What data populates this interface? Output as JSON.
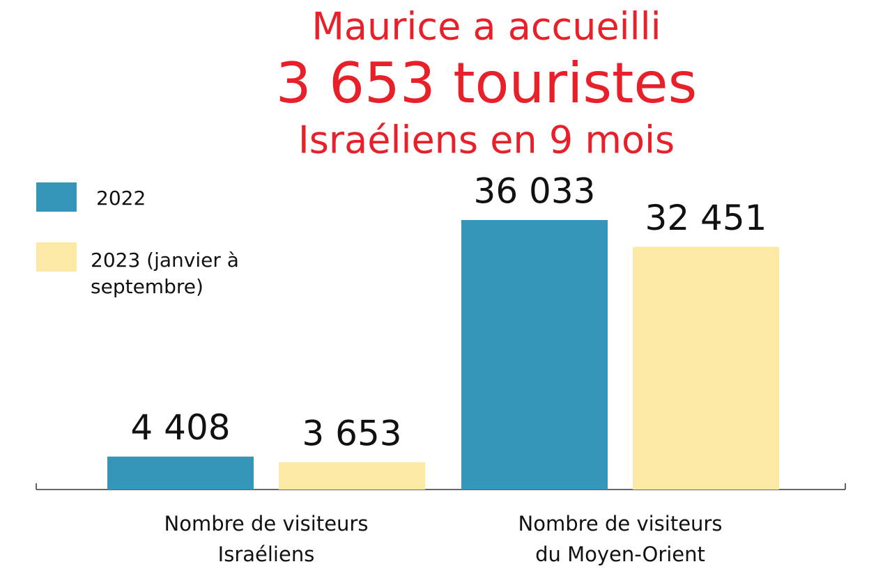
{
  "chart_data": {
    "type": "bar",
    "title": [
      "Maurice a accueilli",
      "3 653 touristes",
      "Israéliens en 9 mois"
    ],
    "title_color": "#e8202a",
    "categories": [
      "Nombre de visiteurs\nIsraéliens",
      "Nombre de visiteurs\ndu Moyen-Orient"
    ],
    "series": [
      {
        "name": "2022",
        "color": "#3596b9",
        "values": [
          4408,
          36033
        ],
        "value_labels": [
          "4 408",
          "36 033"
        ]
      },
      {
        "name": "2023 (janvier à\nseptembre)",
        "color": "#fde9a6",
        "values": [
          3653,
          32451
        ],
        "value_labels": [
          "3 653",
          "32 451"
        ]
      }
    ]
  }
}
